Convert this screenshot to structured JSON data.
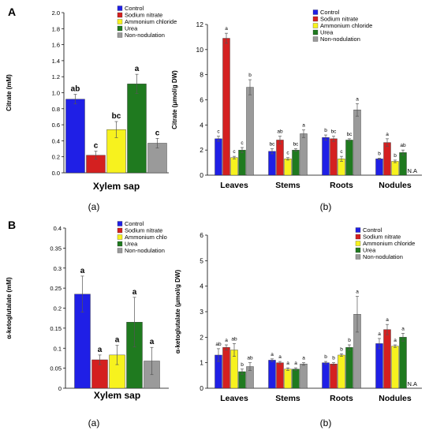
{
  "panel_letters": [
    "A",
    "B"
  ],
  "sub_captions": [
    "(a)",
    "(b)",
    "(a)",
    "(b)"
  ],
  "colors": {
    "control": "#1f1fe6",
    "sodium_nitrate": "#d42020",
    "ammonium_chloride": "#f7f21e",
    "urea": "#1f7a1f",
    "non_nodulation": "#9a9a9a"
  },
  "chart_data": [
    {
      "type": "bar",
      "panel": "A",
      "ylabel": "Citrate (mM)",
      "ylim": [
        0,
        2.0
      ],
      "yticks": [
        "0.0",
        "0.2",
        "0.4",
        "0.6",
        "0.8",
        "1.0",
        "1.2",
        "1.4",
        "1.6",
        "1.8",
        "2.0"
      ],
      "grid": false,
      "legend_position": "top-right",
      "legend": [
        "Control",
        "Sodium nitrate",
        "Ammonium chloride",
        "Urea",
        "Non-nodulation"
      ],
      "categories": [
        "Xylem sap"
      ],
      "series": [
        {
          "name": "Control",
          "values": [
            0.92
          ],
          "errors": [
            0.06
          ],
          "letters": [
            "ab"
          ]
        },
        {
          "name": "Sodium nitrate",
          "values": [
            0.22
          ],
          "errors": [
            0.05
          ],
          "letters": [
            "c"
          ]
        },
        {
          "name": "Ammonium chloride",
          "values": [
            0.54
          ],
          "errors": [
            0.1
          ],
          "letters": [
            "bc"
          ]
        },
        {
          "name": "Urea",
          "values": [
            1.11
          ],
          "errors": [
            0.12
          ],
          "letters": [
            "a"
          ]
        },
        {
          "name": "Non-nodulation",
          "values": [
            0.37
          ],
          "errors": [
            0.06
          ],
          "letters": [
            "c"
          ]
        }
      ]
    },
    {
      "type": "bar",
      "panel": "A",
      "ylabel": "Citrate  (μmol/g DW)",
      "ylim": [
        0,
        12
      ],
      "yticks": [
        "0",
        "2",
        "4",
        "6",
        "8",
        "10",
        "12"
      ],
      "grid": false,
      "legend_position": "top-right",
      "legend": [
        "Control",
        "Sodium nitrate",
        "Ammonium chloride",
        "Urea",
        "Non-nodulation"
      ],
      "categories": [
        "Leaves",
        "Stems",
        "Roots",
        "Nodules"
      ],
      "na_label": "N.A",
      "series": [
        {
          "name": "Control",
          "values": [
            2.9,
            1.9,
            3.0,
            1.3
          ],
          "errors": [
            0.2,
            0.2,
            0.2,
            0.05
          ],
          "letters": [
            "c",
            "bc",
            "b",
            "b"
          ]
        },
        {
          "name": "Sodium nitrate",
          "values": [
            10.9,
            2.8,
            2.9,
            2.6
          ],
          "errors": [
            0.4,
            0.3,
            0.2,
            0.3
          ],
          "letters": [
            "a",
            "ab",
            "bc",
            "a"
          ]
        },
        {
          "name": "Ammonium chloride",
          "values": [
            1.4,
            1.3,
            1.3,
            1.1
          ],
          "errors": [
            0.1,
            0.1,
            0.2,
            0.1
          ],
          "letters": [
            "c",
            "c",
            "c",
            "b"
          ]
        },
        {
          "name": "Urea",
          "values": [
            2.0,
            2.0,
            2.8,
            1.8
          ],
          "errors": [
            0.2,
            0.1,
            0.1,
            0.2
          ],
          "letters": [
            "c",
            "bc",
            "bc",
            "ab"
          ]
        },
        {
          "name": "Non-nodulation",
          "values": [
            7.0,
            3.3,
            5.2,
            null
          ],
          "errors": [
            0.6,
            0.3,
            0.5,
            null
          ],
          "letters": [
            "b",
            "a",
            "a",
            ""
          ]
        }
      ]
    },
    {
      "type": "bar",
      "panel": "B",
      "ylabel": "α-ketoglutalate  (mM)",
      "ylim": [
        0,
        0.4
      ],
      "yticks": [
        "0",
        "0.05",
        "0.1",
        "0.15",
        "0.2",
        "0.25",
        "0.3",
        "0.35",
        "0.4"
      ],
      "grid": false,
      "legend_position": "top-right",
      "legend": [
        "Control",
        "Sodium nitrate",
        "Ammonium chlo",
        "Urea",
        "Non-nodulation"
      ],
      "categories": [
        "Xylem sap"
      ],
      "series": [
        {
          "name": "Control",
          "values": [
            0.235
          ],
          "errors": [
            0.045
          ],
          "letters": [
            "a"
          ]
        },
        {
          "name": "Sodium nitrate",
          "values": [
            0.071
          ],
          "errors": [
            0.012
          ],
          "letters": [
            "a"
          ]
        },
        {
          "name": "Ammonium chlo",
          "values": [
            0.083
          ],
          "errors": [
            0.024
          ],
          "letters": [
            "a"
          ]
        },
        {
          "name": "Urea",
          "values": [
            0.165
          ],
          "errors": [
            0.062
          ],
          "letters": [
            "a"
          ]
        },
        {
          "name": "Non-nodulation",
          "values": [
            0.068
          ],
          "errors": [
            0.034
          ],
          "letters": [
            "a"
          ]
        }
      ]
    },
    {
      "type": "bar",
      "panel": "B",
      "ylabel": "α-ketoglutalate  (μmol/g DW)",
      "ylim": [
        0,
        6
      ],
      "yticks": [
        "0",
        "1",
        "2",
        "3",
        "4",
        "5",
        "6"
      ],
      "grid": false,
      "legend_position": "top-right",
      "legend": [
        "Control",
        "Sodium nitrate",
        "Ammonium chloride",
        "Urea",
        "Non-nodulation"
      ],
      "categories": [
        "Leaves",
        "Stems",
        "Roots",
        "Nodules"
      ],
      "na_label": "N.A",
      "series": [
        {
          "name": "Control",
          "values": [
            1.3,
            1.1,
            1.0,
            1.75
          ],
          "errors": [
            0.25,
            0.05,
            0.05,
            0.2
          ],
          "letters": [
            "ab",
            "a",
            "b",
            "a"
          ]
        },
        {
          "name": "Sodium nitrate",
          "values": [
            1.6,
            1.0,
            0.95,
            2.3
          ],
          "errors": [
            0.1,
            0.05,
            0.05,
            0.2
          ],
          "letters": [
            "a",
            "a",
            "b",
            "a"
          ]
        },
        {
          "name": "Ammonium chloride",
          "values": [
            1.5,
            0.75,
            1.3,
            1.65
          ],
          "errors": [
            0.25,
            0.05,
            0.05,
            0.05
          ],
          "letters": [
            "ab",
            "a",
            "b",
            "a"
          ]
        },
        {
          "name": "Urea",
          "values": [
            0.65,
            0.75,
            1.6,
            2.0
          ],
          "errors": [
            0.1,
            0.05,
            0.1,
            0.15
          ],
          "letters": [
            "b",
            "a",
            "b",
            "a"
          ]
        },
        {
          "name": "Non-nodulation",
          "values": [
            0.85,
            0.95,
            2.9,
            null
          ],
          "errors": [
            0.15,
            0.05,
            0.7,
            null
          ],
          "letters": [
            "ab",
            "a",
            "a",
            ""
          ]
        }
      ]
    }
  ]
}
